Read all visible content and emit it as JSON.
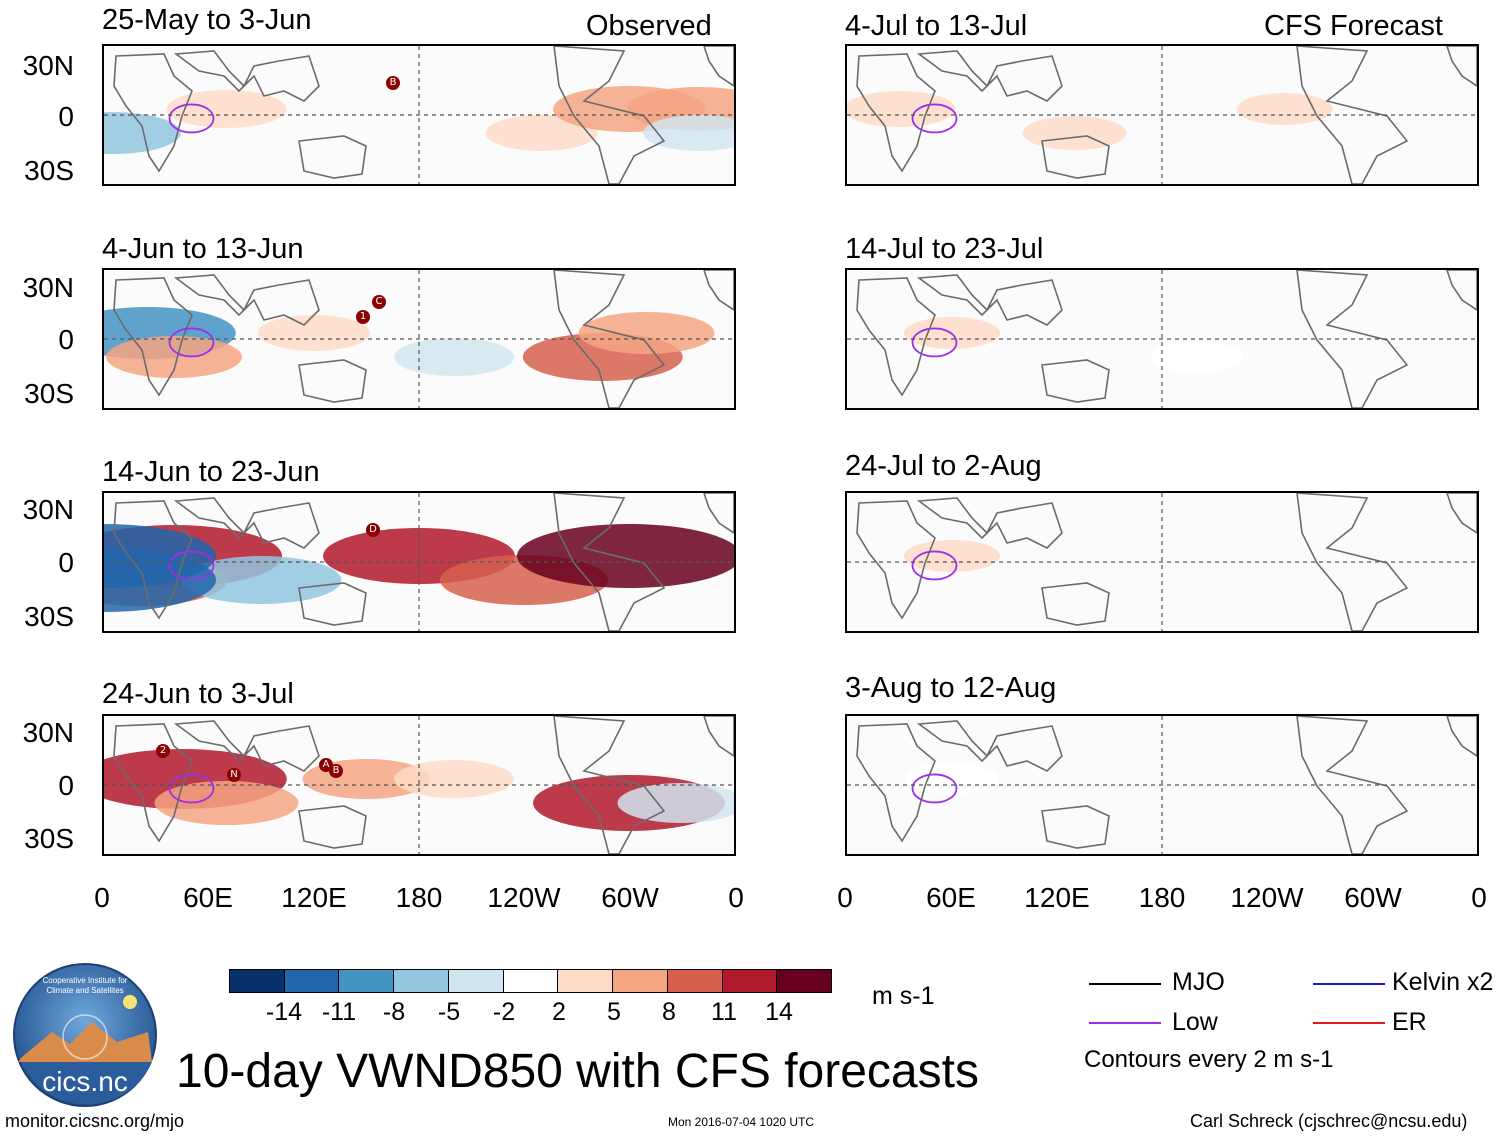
{
  "observed_label": "Observed",
  "forecast_label": "CFS Forecast",
  "panels_left": [
    {
      "title": "25-May to 3-Jun"
    },
    {
      "title": "4-Jun to 13-Jun"
    },
    {
      "title": "14-Jun to 23-Jun"
    },
    {
      "title": "24-Jun to 3-Jul"
    }
  ],
  "panels_right": [
    {
      "title": "4-Jul to 13-Jul"
    },
    {
      "title": "14-Jul to 23-Jul"
    },
    {
      "title": "24-Jul to 2-Aug"
    },
    {
      "title": "3-Aug to 12-Aug"
    }
  ],
  "lat_labels": [
    "30N",
    "0",
    "30S"
  ],
  "lon_labels": [
    "0",
    "60E",
    "120E",
    "180",
    "120W",
    "60W",
    "0"
  ],
  "storm_markers": [
    {
      "panel": 0,
      "label": "B"
    },
    {
      "panel": 1,
      "label": "1"
    },
    {
      "panel": 1,
      "label": "C"
    },
    {
      "panel": 2,
      "label": "D"
    },
    {
      "panel": 3,
      "label": "2"
    },
    {
      "panel": 3,
      "label": "N"
    },
    {
      "panel": 3,
      "label": "A"
    },
    {
      "panel": 3,
      "label": "B"
    }
  ],
  "colorbar": {
    "colors": [
      "#08306b",
      "#2166ac",
      "#4393c3",
      "#92c5de",
      "#d1e5f0",
      "#ffffff",
      "#fddbc7",
      "#f4a582",
      "#d6604d",
      "#b2182b",
      "#67001f"
    ],
    "ticks": [
      "-14",
      "-11",
      "-8",
      "-5",
      "-2",
      "2",
      "5",
      "8",
      "11",
      "14"
    ],
    "units": "m s-1"
  },
  "legend": {
    "items": [
      {
        "label": "MJO",
        "color": "#000000"
      },
      {
        "label": "Kelvin x2",
        "color": "#1a1acc"
      },
      {
        "label": "Low",
        "color": "#9b30e6"
      },
      {
        "label": "ER",
        "color": "#e01818"
      }
    ],
    "note": "Contours every 2 m s-1"
  },
  "logo_text": "cics.nc",
  "logo_ring_text": "Cooperative Institute for Climate and Satellites",
  "main_title": "10-day VWND850 with CFS forecasts",
  "footer": {
    "left": "monitor.cicsnc.org/mjo",
    "center": "Mon 2016-07-04 1020 UTC",
    "right": "Carl Schreck (cjschrec@ncsu.edu)"
  }
}
